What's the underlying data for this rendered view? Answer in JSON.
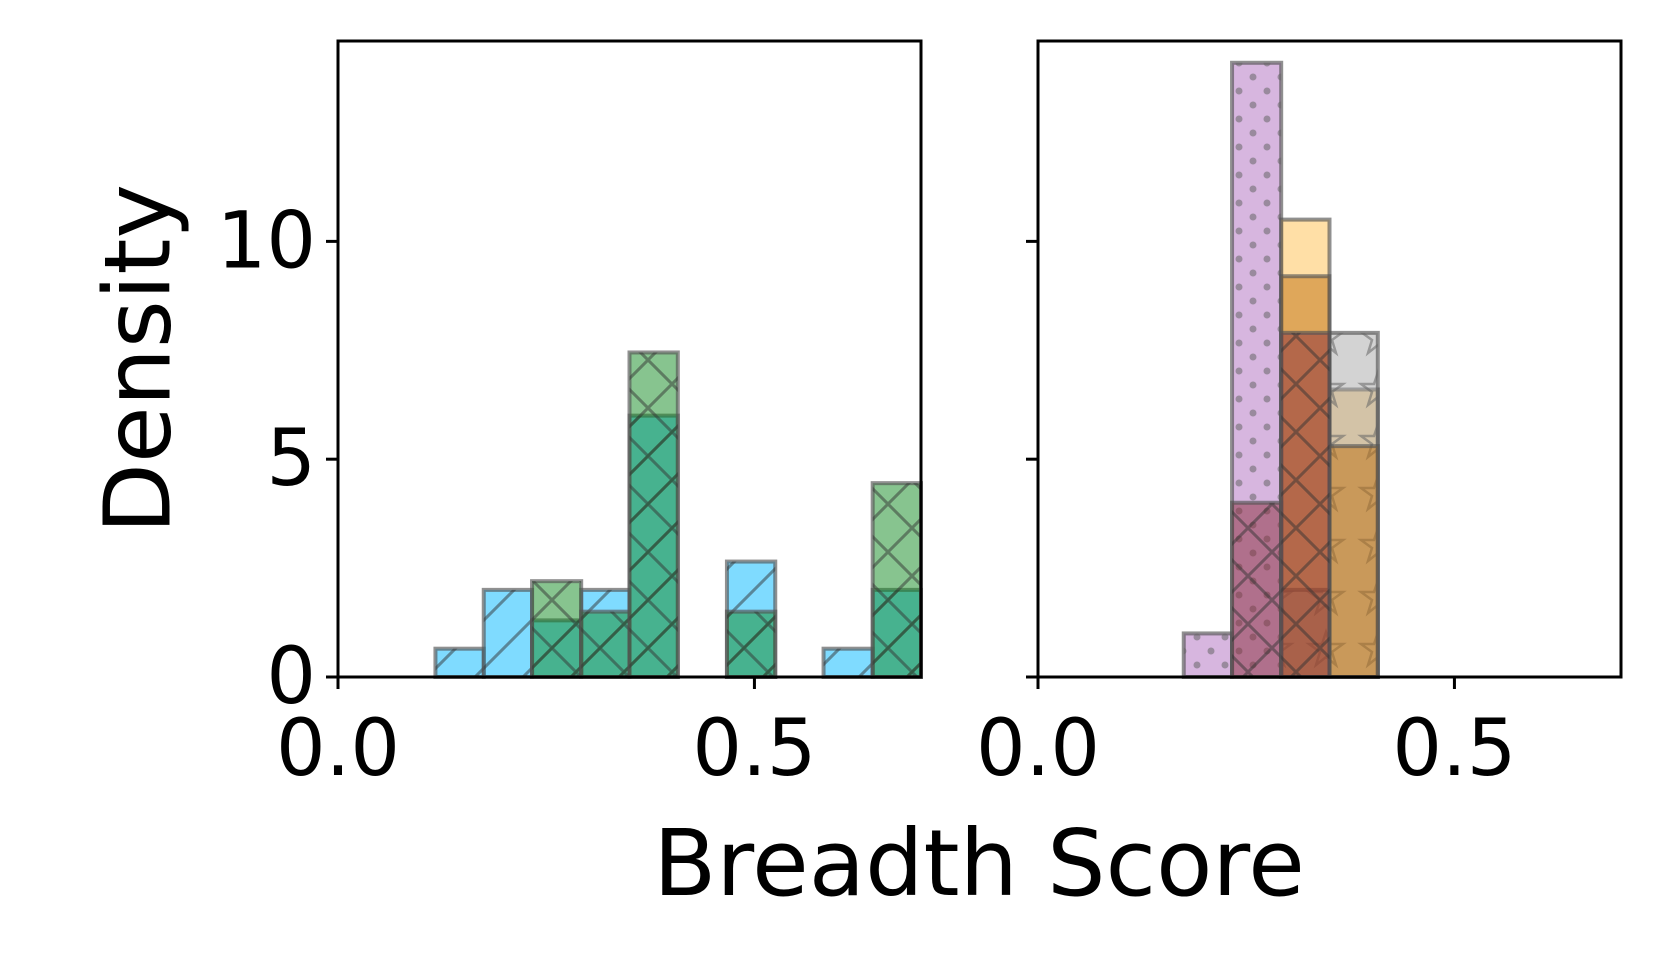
{
  "chart_data": [
    {
      "type": "bar",
      "panel": "left",
      "xlim": [
        0.0,
        0.7
      ],
      "ylim": [
        0,
        14.6
      ],
      "xticks": [
        0.0,
        0.5
      ],
      "xtick_labels": [
        "0.0",
        "0.5"
      ],
      "yticks": [
        0,
        5,
        10
      ],
      "ytick_labels": [
        "0",
        "5",
        "10"
      ],
      "ylabel": "Density",
      "grid": false,
      "series": [
        {
          "color": "#00b7ff",
          "hatch": "diagonal",
          "bins": [
            {
              "x0": 0.117,
              "x1": 0.175,
              "y": 0.65
            },
            {
              "x0": 0.175,
              "x1": 0.233,
              "y": 2.0
            },
            {
              "x0": 0.233,
              "x1": 0.292,
              "y": 1.3
            },
            {
              "x0": 0.292,
              "x1": 0.35,
              "y": 2.0
            },
            {
              "x0": 0.35,
              "x1": 0.408,
              "y": 6.0
            },
            {
              "x0": 0.467,
              "x1": 0.525,
              "y": 2.65
            },
            {
              "x0": 0.583,
              "x1": 0.642,
              "y": 0.65
            },
            {
              "x0": 0.642,
              "x1": 0.7,
              "y": 2.0
            }
          ]
        },
        {
          "color": "#0f8a1f",
          "hatch": "cross-diagonal",
          "bins": [
            {
              "x0": 0.233,
              "x1": 0.292,
              "y": 2.2
            },
            {
              "x0": 0.292,
              "x1": 0.35,
              "y": 1.5
            },
            {
              "x0": 0.35,
              "x1": 0.408,
              "y": 7.45
            },
            {
              "x0": 0.467,
              "x1": 0.525,
              "y": 1.5
            },
            {
              "x0": 0.642,
              "x1": 0.7,
              "y": 4.45
            }
          ]
        }
      ]
    },
    {
      "type": "bar",
      "panel": "right",
      "xlim": [
        0.0,
        0.7
      ],
      "ylim": [
        0,
        14.6
      ],
      "xticks": [
        0.0,
        0.5
      ],
      "xtick_labels": [
        "0.0",
        "0.5"
      ],
      "yticks": [
        0,
        5,
        10
      ],
      "xlabel": "Breadth Score",
      "grid": false,
      "series": [
        {
          "color": "#b06ec0",
          "hatch": "dots",
          "bins": [
            {
              "x0": 0.175,
              "x1": 0.233,
              "y": 1.0
            },
            {
              "x0": 0.233,
              "x1": 0.292,
              "y": 14.1
            }
          ]
        },
        {
          "color": "#ffc04d",
          "hatch": "none",
          "bins": [
            {
              "x0": 0.292,
              "x1": 0.35,
              "y": 10.5
            },
            {
              "x0": 0.35,
              "x1": 0.408,
              "y": 6.6
            }
          ]
        },
        {
          "color": "#a8a8a8",
          "hatch": "stars",
          "bins": [
            {
              "x0": 0.292,
              "x1": 0.35,
              "y": 2.0
            },
            {
              "x0": 0.35,
              "x1": 0.408,
              "y": 7.9
            }
          ]
        },
        {
          "color": "#c0700e",
          "hatch": "none",
          "bins": [
            {
              "x0": 0.292,
              "x1": 0.35,
              "y": 9.2
            },
            {
              "x0": 0.35,
              "x1": 0.408,
              "y": 5.3
            }
          ]
        },
        {
          "color": "#8a2a3a",
          "hatch": "cross-diagonal",
          "bins": [
            {
              "x0": 0.233,
              "x1": 0.292,
              "y": 4.0
            },
            {
              "x0": 0.292,
              "x1": 0.35,
              "y": 7.9
            }
          ]
        }
      ]
    }
  ]
}
